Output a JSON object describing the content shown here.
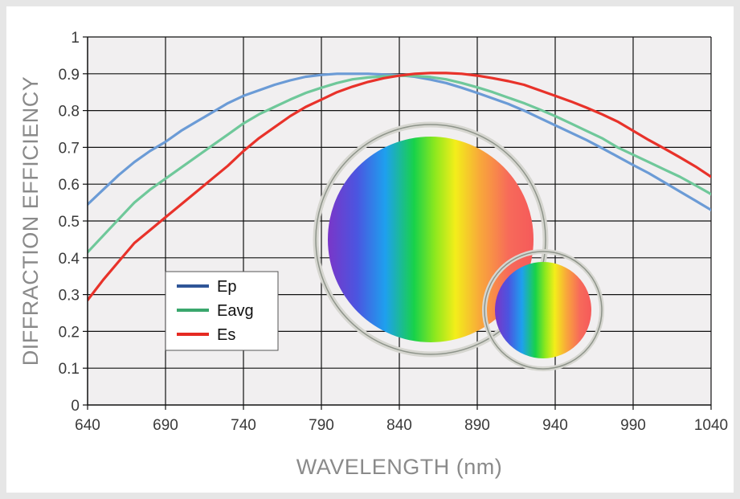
{
  "chart_data": {
    "type": "line",
    "xlabel": "WAVELENGTH (nm)",
    "ylabel": "DIFFRACTION EFFICIENCY",
    "xlim": [
      640,
      1040
    ],
    "ylim": [
      0,
      1
    ],
    "x_ticks": [
      "640",
      "690",
      "740",
      "790",
      "840",
      "890",
      "940",
      "990",
      "1040"
    ],
    "y_ticks": [
      "0",
      "0.1",
      "0.2",
      "0.3",
      "0.4",
      "0.5",
      "0.6",
      "0.7",
      "0.8",
      "0.9",
      "1"
    ],
    "grid": true,
    "legend_position": "lower-left",
    "x": [
      640,
      650,
      660,
      670,
      680,
      690,
      700,
      710,
      720,
      730,
      740,
      750,
      760,
      770,
      780,
      790,
      800,
      810,
      820,
      830,
      840,
      850,
      860,
      870,
      880,
      890,
      900,
      910,
      920,
      930,
      940,
      950,
      960,
      970,
      980,
      990,
      1000,
      1010,
      1020,
      1030,
      1040
    ],
    "series": [
      {
        "name": "Ep",
        "color": "#6b9bd6",
        "legend_color": "#2f5597",
        "values": [
          0.545,
          0.585,
          0.625,
          0.66,
          0.69,
          0.715,
          0.745,
          0.77,
          0.795,
          0.82,
          0.84,
          0.855,
          0.87,
          0.882,
          0.892,
          0.897,
          0.9,
          0.9,
          0.9,
          0.898,
          0.896,
          0.892,
          0.884,
          0.875,
          0.862,
          0.848,
          0.833,
          0.818,
          0.8,
          0.78,
          0.76,
          0.74,
          0.72,
          0.698,
          0.675,
          0.652,
          0.63,
          0.605,
          0.58,
          0.555,
          0.53
        ]
      },
      {
        "name": "Eavg",
        "color": "#6fc89a",
        "legend_color": "#3aa76d",
        "values": [
          0.415,
          0.46,
          0.505,
          0.55,
          0.585,
          0.615,
          0.645,
          0.675,
          0.705,
          0.735,
          0.765,
          0.79,
          0.81,
          0.83,
          0.848,
          0.862,
          0.875,
          0.885,
          0.89,
          0.893,
          0.895,
          0.894,
          0.891,
          0.885,
          0.875,
          0.863,
          0.85,
          0.835,
          0.82,
          0.803,
          0.785,
          0.765,
          0.745,
          0.725,
          0.7,
          0.68,
          0.66,
          0.64,
          0.62,
          0.597,
          0.573
        ]
      },
      {
        "name": "Es",
        "color": "#e8322a",
        "legend_color": "#e52a22",
        "values": [
          0.285,
          0.34,
          0.39,
          0.44,
          0.475,
          0.51,
          0.545,
          0.58,
          0.615,
          0.65,
          0.69,
          0.725,
          0.755,
          0.785,
          0.81,
          0.83,
          0.85,
          0.865,
          0.878,
          0.888,
          0.895,
          0.9,
          0.902,
          0.902,
          0.9,
          0.895,
          0.888,
          0.88,
          0.87,
          0.855,
          0.84,
          0.825,
          0.808,
          0.79,
          0.77,
          0.745,
          0.72,
          0.697,
          0.673,
          0.648,
          0.62
        ]
      }
    ]
  }
}
